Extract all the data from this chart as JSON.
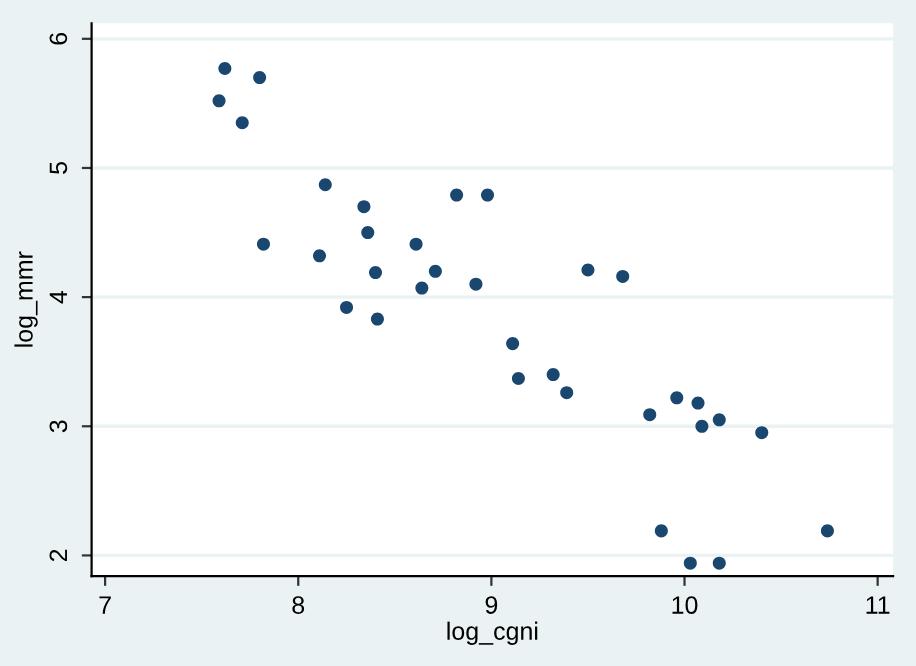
{
  "chart_data": {
    "type": "scatter",
    "xlabel": "log_cgni",
    "ylabel": "log_mmr",
    "x": [
      7.59,
      7.62,
      7.8,
      7.71,
      7.82,
      8.11,
      8.14,
      8.25,
      8.34,
      8.36,
      8.4,
      8.41,
      8.61,
      8.64,
      8.71,
      8.82,
      8.92,
      8.98,
      9.5,
      9.68,
      9.11,
      9.14,
      9.32,
      9.39,
      9.82,
      9.96,
      10.07,
      10.09,
      10.18,
      10.4,
      9.88,
      10.03,
      10.18,
      10.74
    ],
    "series": [
      {
        "color": "#1a476f",
        "values": [
          5.52,
          5.77,
          5.7,
          5.35,
          4.41,
          4.32,
          4.87,
          3.92,
          4.7,
          4.5,
          4.19,
          3.83,
          4.41,
          4.07,
          4.2,
          4.79,
          4.1,
          4.79,
          4.21,
          4.16,
          3.64,
          3.37,
          3.4,
          3.26,
          3.09,
          3.22,
          3.18,
          3.0,
          3.05,
          2.95,
          2.19,
          1.94,
          1.94,
          2.19
        ]
      }
    ],
    "xlim": [
      6.93,
      11.08
    ],
    "ylim": [
      1.84,
      6.12
    ],
    "xticks": [
      7,
      8,
      9,
      10,
      11
    ],
    "yticks": [
      2,
      3,
      4,
      5,
      6
    ],
    "grid": "y",
    "marker": "circle",
    "legend": false
  }
}
